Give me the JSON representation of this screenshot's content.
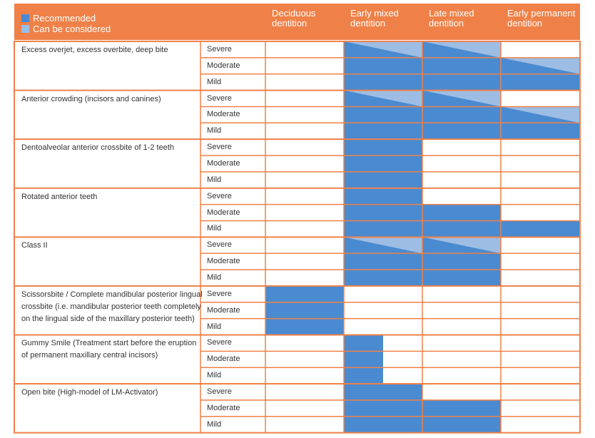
{
  "colors": {
    "orange": "#EF8148",
    "recommended": "#4A8AD0",
    "considered": "#9DBDE4"
  },
  "legend": {
    "recommended": "Recommended",
    "considered": "Can be considered"
  },
  "columns": [
    {
      "line1": "Deciduous",
      "line2": "dentition"
    },
    {
      "line1": "Early mixed",
      "line2": "dentition"
    },
    {
      "line1": "Late mixed",
      "line2": "dentition"
    },
    {
      "line1": "Early permanent",
      "line2": "dentition"
    }
  ],
  "severities": [
    "Severe",
    "Moderate",
    "Mild"
  ],
  "conditions": [
    {
      "label": [
        "Excess overjet, excess overbite, deep bite"
      ],
      "cells": [
        [
          "none",
          "considered",
          "considered",
          "none"
        ],
        [
          "none",
          "recommended",
          "recommended",
          "considered"
        ],
        [
          "none",
          "recommended",
          "recommended",
          "recommended"
        ]
      ]
    },
    {
      "label": [
        "Anterior crowding (incisors and canines)"
      ],
      "cells": [
        [
          "none",
          "considered",
          "considered",
          "none"
        ],
        [
          "none",
          "recommended",
          "recommended",
          "considered"
        ],
        [
          "none",
          "recommended",
          "recommended",
          "recommended"
        ]
      ]
    },
    {
      "label": [
        "Dentoalveolar anterior crossbite of 1-2 teeth"
      ],
      "cells": [
        [
          "none",
          "recommended",
          "none",
          "none"
        ],
        [
          "none",
          "recommended",
          "none",
          "none"
        ],
        [
          "none",
          "recommended",
          "none",
          "none"
        ]
      ]
    },
    {
      "label": [
        "Rotated anterior teeth"
      ],
      "cells": [
        [
          "none",
          "recommended",
          "none",
          "none"
        ],
        [
          "none",
          "recommended",
          "recommended",
          "none"
        ],
        [
          "none",
          "recommended",
          "recommended",
          "recommended"
        ]
      ]
    },
    {
      "label": [
        "Class II"
      ],
      "cells": [
        [
          "none",
          "considered",
          "considered",
          "none"
        ],
        [
          "none",
          "recommended",
          "recommended",
          "none"
        ],
        [
          "none",
          "recommended",
          "recommended",
          "none"
        ]
      ]
    },
    {
      "label": [
        "Scissorsbite / Complete mandibular posterior lingual",
        "crossbite (i.e. mandibular posterior teeth completely",
        "on the lingual side of the maxillary posterior teeth)"
      ],
      "cells": [
        [
          "recommended",
          "none",
          "none",
          "none"
        ],
        [
          "recommended",
          "none",
          "none",
          "none"
        ],
        [
          "recommended",
          "none",
          "none",
          "none"
        ]
      ]
    },
    {
      "label": [
        "Gummy Smile (Treatment start before the eruption",
        "of permanent maxillary central incisors)"
      ],
      "cells": [
        [
          "none",
          "half",
          "none",
          "none"
        ],
        [
          "none",
          "half",
          "none",
          "none"
        ],
        [
          "none",
          "half",
          "none",
          "none"
        ]
      ]
    },
    {
      "label": [
        "Open bite (High-model of LM-Activator)"
      ],
      "cells": [
        [
          "none",
          "recommended",
          "none",
          "none"
        ],
        [
          "none",
          "recommended",
          "recommended",
          "none"
        ],
        [
          "none",
          "recommended",
          "recommended",
          "none"
        ]
      ]
    }
  ]
}
